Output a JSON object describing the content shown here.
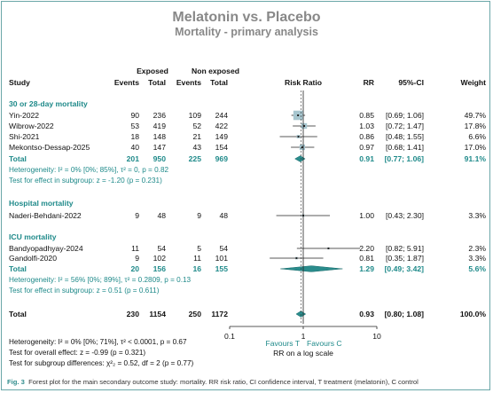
{
  "title": "Melatonin vs. Placebo",
  "subtitle": "Mortality - primary analysis",
  "colors": {
    "teal": "#1f8a8a",
    "title_gray": "#888888",
    "text": "#111111",
    "box": "#a7c6cf",
    "diamond": "#2a8c8c",
    "frame": "#6aa7a8"
  },
  "headers": {
    "exposed": "Exposed",
    "non_exposed": "Non exposed",
    "study": "Study",
    "events1": "Events",
    "total1": "Total",
    "events2": "Events",
    "total2": "Total",
    "risk_ratio": "Risk Ratio",
    "rr": "RR",
    "ci": "95%-CI",
    "weight": "Weight"
  },
  "chart_data": {
    "type": "forest",
    "x_scale": "log",
    "xlim": [
      0.1,
      10
    ],
    "x_ticks": [
      "0.1",
      "1",
      "10"
    ],
    "xlabel": "RR on a log scale",
    "favours_left": "Favours T",
    "favours_right": "Favours C",
    "overall_rr": 0.93,
    "groups": [
      {
        "label": "30 or 28-day mortality",
        "studies": [
          {
            "study": "Yin-2022",
            "e1": "90",
            "n1": "236",
            "e2": "109",
            "n2": "244",
            "rr": 0.85,
            "lo": 0.69,
            "hi": 1.06,
            "rr_text": "0.85",
            "ci_text": "[0.69; 1.06]",
            "weight": "49.7%",
            "w": 49.7
          },
          {
            "study": "Wibrow-2022",
            "e1": "53",
            "n1": "419",
            "e2": "52",
            "n2": "422",
            "rr": 1.03,
            "lo": 0.72,
            "hi": 1.47,
            "rr_text": "1.03",
            "ci_text": "[0.72; 1.47]",
            "weight": "17.8%",
            "w": 17.8
          },
          {
            "study": "Shi-2021",
            "e1": "18",
            "n1": "148",
            "e2": "21",
            "n2": "149",
            "rr": 0.86,
            "lo": 0.48,
            "hi": 1.55,
            "rr_text": "0.86",
            "ci_text": "[0.48; 1.55]",
            "weight": "6.6%",
            "w": 6.6
          },
          {
            "study": "Mekontso-Dessap-2025",
            "e1": "40",
            "n1": "147",
            "e2": "43",
            "n2": "154",
            "rr": 0.97,
            "lo": 0.68,
            "hi": 1.41,
            "rr_text": "0.97",
            "ci_text": "[0.68; 1.41]",
            "weight": "17.0%",
            "w": 17.0
          }
        ],
        "total": {
          "label": "Total",
          "n1": "201",
          "t1": "950",
          "n2": "225",
          "t2": "969",
          "rr": 0.91,
          "lo": 0.77,
          "hi": 1.06,
          "rr_text": "0.91",
          "ci_text": "[0.77; 1.06]",
          "weight": "91.1%"
        },
        "heterogeneity": "Heterogeneity: I² = 0% [0%; 85%], τ² = 0, p = 0.82",
        "effect_test": "Test for effect in subgroup: z = -1.20 (p = 0.231)"
      },
      {
        "label": "Hospital mortality",
        "studies": [
          {
            "study": "Naderi-Behdani-2022",
            "e1": "9",
            "n1": "48",
            "e2": "9",
            "n2": "48",
            "rr": 1.0,
            "lo": 0.43,
            "hi": 2.3,
            "rr_text": "1.00",
            "ci_text": "[0.43; 2.30]",
            "weight": "3.3%",
            "w": 3.3
          }
        ]
      },
      {
        "label": "ICU mortality",
        "studies": [
          {
            "study": "Bandyopadhyay-2024",
            "e1": "11",
            "n1": "54",
            "e2": "5",
            "n2": "54",
            "rr": 2.2,
            "lo": 0.82,
            "hi": 5.91,
            "rr_text": "2.20",
            "ci_text": "[0.82; 5.91]",
            "weight": "2.3%",
            "w": 2.3
          },
          {
            "study": "Gandolfi-2020",
            "e1": "9",
            "n1": "102",
            "e2": "11",
            "n2": "101",
            "rr": 0.81,
            "lo": 0.35,
            "hi": 1.87,
            "rr_text": "0.81",
            "ci_text": "[0.35; 1.87]",
            "weight": "3.3%",
            "w": 3.3
          }
        ],
        "total": {
          "label": "Total",
          "n1": "20",
          "t1": "156",
          "n2": "16",
          "t2": "155",
          "rr": 1.29,
          "lo": 0.49,
          "hi": 3.42,
          "rr_text": "1.29",
          "ci_text": "[0.49; 3.42]",
          "weight": "5.6%"
        },
        "heterogeneity": "Heterogeneity: I² = 56% [0%; 89%], τ² = 0.2809, p = 0.13",
        "effect_test": "Test for effect in subgroup: z = 0.51 (p = 0.611)"
      }
    ],
    "overall": {
      "label": "Total",
      "n1": "230",
      "t1": "1154",
      "n2": "250",
      "t2": "1172",
      "rr": 0.93,
      "lo": 0.8,
      "hi": 1.08,
      "rr_text": "0.93",
      "ci_text": "[0.80; 1.08]",
      "weight": "100.0%"
    },
    "footer_stats": [
      "Heterogeneity: I² = 0% [0%; 71%], τ² < 0.0001, p = 0.67",
      "Test for overall effect: z = -0.99 (p = 0.321)",
      "Test for subgroup differences: χ²₂ = 0.52, df = 2 (p = 0.77)"
    ]
  },
  "caption": {
    "label": "Fig. 3",
    "text": "Forest plot for the main secondary outcome study: mortality. RR risk ratio, CI confidence interval, T treatment (melatonin), C control"
  }
}
